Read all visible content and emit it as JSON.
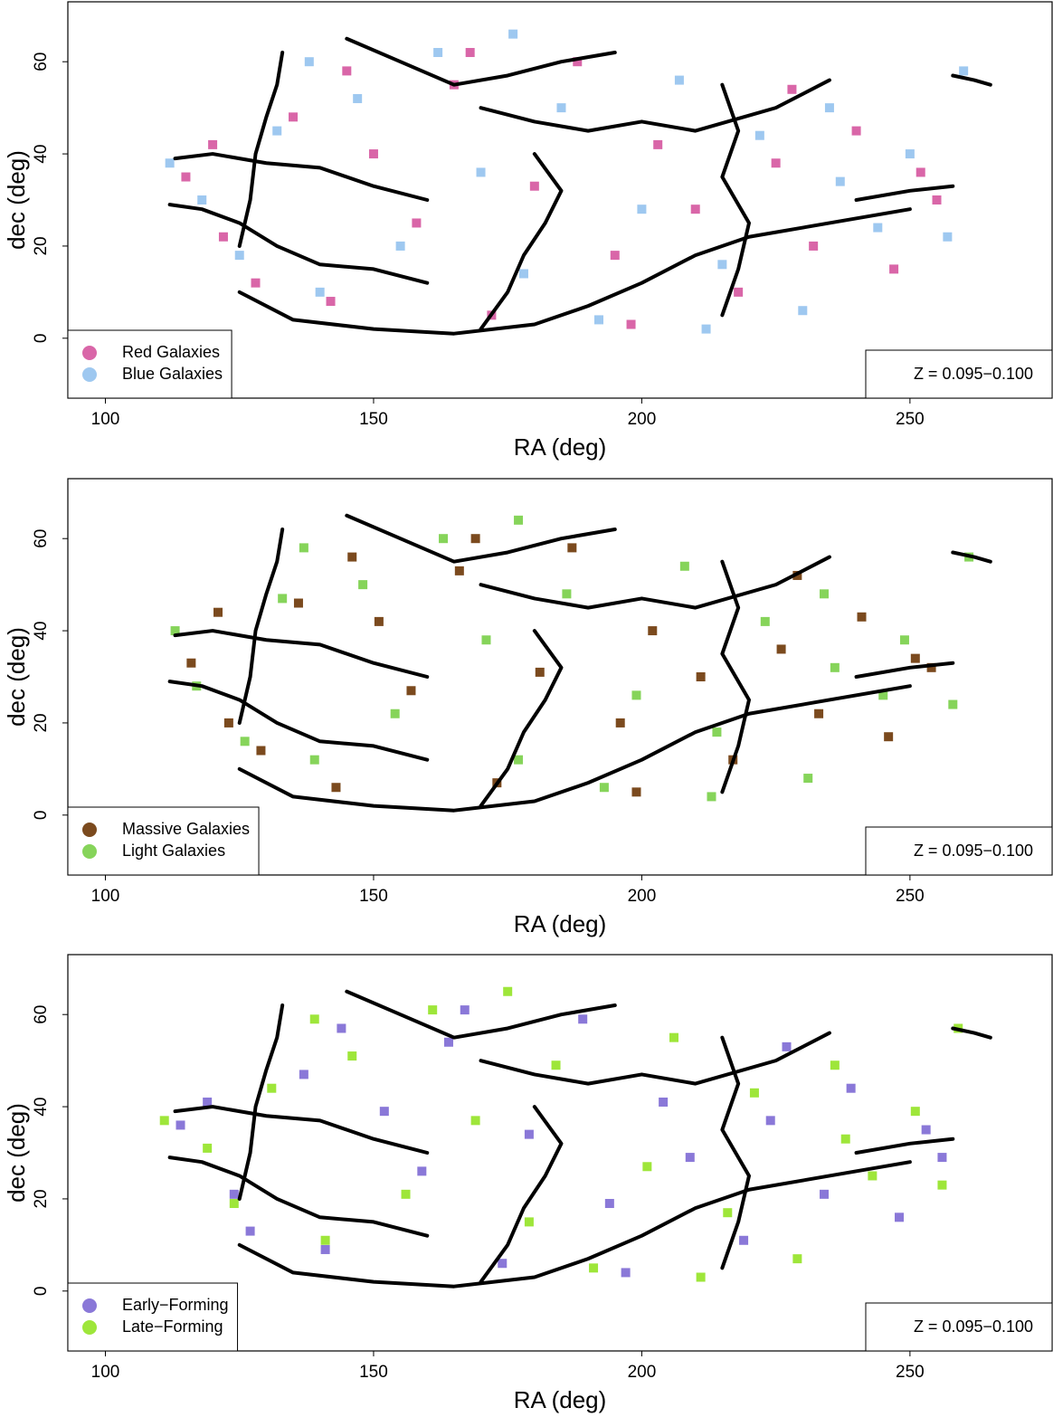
{
  "chart_data": [
    {
      "type": "scatter",
      "xlabel": "RA (deg)",
      "ylabel": "dec (deg)",
      "annotation": "Z = 0.095−0.100",
      "xlim": [
        93,
        276.5
      ],
      "ylim": [
        -13,
        73
      ],
      "xticks": [
        100,
        150,
        200,
        250
      ],
      "yticks": [
        0,
        20,
        40,
        60
      ],
      "series": [
        {
          "name": "Red Galaxies",
          "color": "#d966a8",
          "x": [
            115,
            122,
            128,
            135,
            142,
            150,
            158,
            165,
            172,
            180,
            188,
            195,
            203,
            210,
            218,
            225,
            232,
            240,
            247,
            255,
            120,
            145,
            168,
            198,
            228,
            252
          ],
          "y": [
            35,
            22,
            12,
            48,
            8,
            40,
            25,
            55,
            5,
            33,
            60,
            18,
            42,
            28,
            10,
            38,
            20,
            45,
            15,
            30,
            42,
            58,
            62,
            3,
            54,
            36
          ]
        },
        {
          "name": "Blue Galaxies",
          "color": "#9ec8f0",
          "x": [
            118,
            125,
            132,
            140,
            147,
            155,
            162,
            170,
            178,
            185,
            192,
            200,
            207,
            215,
            222,
            230,
            237,
            244,
            250,
            260,
            112,
            138,
            176,
            212,
            235,
            257
          ],
          "y": [
            30,
            18,
            45,
            10,
            52,
            20,
            62,
            36,
            14,
            50,
            4,
            28,
            56,
            16,
            44,
            6,
            34,
            24,
            40,
            58,
            38,
            60,
            66,
            2,
            50,
            22
          ]
        }
      ],
      "filament_color": "#000000",
      "filaments": [
        {
          "x": [
            113,
            120,
            130,
            140,
            150,
            160
          ],
          "y": [
            39,
            40,
            38,
            37,
            33,
            30
          ]
        },
        {
          "x": [
            112,
            118,
            125,
            132,
            140,
            150,
            160
          ],
          "y": [
            29,
            28,
            25,
            20,
            16,
            15,
            12
          ]
        },
        {
          "x": [
            125,
            135,
            150,
            165,
            180,
            190,
            200,
            210,
            220,
            235,
            250
          ],
          "y": [
            10,
            4,
            2,
            1,
            3,
            7,
            12,
            18,
            22,
            25,
            28
          ]
        },
        {
          "x": [
            145,
            155,
            165,
            175,
            185,
            195
          ],
          "y": [
            65,
            60,
            55,
            57,
            60,
            62
          ]
        },
        {
          "x": [
            170,
            180,
            190,
            200,
            210,
            225,
            235
          ],
          "y": [
            50,
            47,
            45,
            47,
            45,
            50,
            56
          ]
        },
        {
          "x": [
            215,
            218,
            215,
            220,
            218,
            215
          ],
          "y": [
            55,
            45,
            35,
            25,
            15,
            5
          ]
        },
        {
          "x": [
            180,
            185,
            182,
            178,
            175,
            170
          ],
          "y": [
            40,
            32,
            25,
            18,
            10,
            2
          ]
        },
        {
          "x": [
            240,
            250,
            258
          ],
          "y": [
            30,
            32,
            33
          ]
        },
        {
          "x": [
            133,
            132,
            130,
            128,
            127,
            125
          ],
          "y": [
            62,
            55,
            48,
            40,
            30,
            20
          ]
        },
        {
          "x": [
            258,
            262,
            265
          ],
          "y": [
            57,
            56,
            55
          ]
        }
      ]
    },
    {
      "type": "scatter",
      "xlabel": "RA (deg)",
      "ylabel": "dec (deg)",
      "annotation": "Z = 0.095−0.100",
      "xlim": [
        93,
        276.5
      ],
      "ylim": [
        -13,
        73
      ],
      "xticks": [
        100,
        150,
        200,
        250
      ],
      "yticks": [
        0,
        20,
        40,
        60
      ],
      "series": [
        {
          "name": "Massive Galaxies",
          "color": "#7b4a1e",
          "x": [
            116,
            123,
            129,
            136,
            143,
            151,
            157,
            166,
            173,
            181,
            187,
            196,
            202,
            211,
            217,
            226,
            233,
            241,
            246,
            254,
            121,
            146,
            169,
            199,
            229,
            251
          ],
          "y": [
            33,
            20,
            14,
            46,
            6,
            42,
            27,
            53,
            7,
            31,
            58,
            20,
            40,
            30,
            12,
            36,
            22,
            43,
            17,
            32,
            44,
            56,
            60,
            5,
            52,
            34
          ]
        },
        {
          "name": "Light Galaxies",
          "color": "#86d45a",
          "x": [
            117,
            126,
            133,
            139,
            148,
            154,
            163,
            171,
            177,
            186,
            193,
            199,
            208,
            214,
            223,
            231,
            236,
            245,
            249,
            261,
            113,
            137,
            177,
            213,
            234,
            258
          ],
          "y": [
            28,
            16,
            47,
            12,
            50,
            22,
            60,
            38,
            12,
            48,
            6,
            26,
            54,
            18,
            42,
            8,
            32,
            26,
            38,
            56,
            40,
            58,
            64,
            4,
            48,
            24
          ]
        }
      ],
      "filament_color": "#000000",
      "filaments": [
        {
          "x": [
            113,
            120,
            130,
            140,
            150,
            160
          ],
          "y": [
            39,
            40,
            38,
            37,
            33,
            30
          ]
        },
        {
          "x": [
            112,
            118,
            125,
            132,
            140,
            150,
            160
          ],
          "y": [
            29,
            28,
            25,
            20,
            16,
            15,
            12
          ]
        },
        {
          "x": [
            125,
            135,
            150,
            165,
            180,
            190,
            200,
            210,
            220,
            235,
            250
          ],
          "y": [
            10,
            4,
            2,
            1,
            3,
            7,
            12,
            18,
            22,
            25,
            28
          ]
        },
        {
          "x": [
            145,
            155,
            165,
            175,
            185,
            195
          ],
          "y": [
            65,
            60,
            55,
            57,
            60,
            62
          ]
        },
        {
          "x": [
            170,
            180,
            190,
            200,
            210,
            225,
            235
          ],
          "y": [
            50,
            47,
            45,
            47,
            45,
            50,
            56
          ]
        },
        {
          "x": [
            215,
            218,
            215,
            220,
            218,
            215
          ],
          "y": [
            55,
            45,
            35,
            25,
            15,
            5
          ]
        },
        {
          "x": [
            180,
            185,
            182,
            178,
            175,
            170
          ],
          "y": [
            40,
            32,
            25,
            18,
            10,
            2
          ]
        },
        {
          "x": [
            240,
            250,
            258
          ],
          "y": [
            30,
            32,
            33
          ]
        },
        {
          "x": [
            133,
            132,
            130,
            128,
            127,
            125
          ],
          "y": [
            62,
            55,
            48,
            40,
            30,
            20
          ]
        },
        {
          "x": [
            258,
            262,
            265
          ],
          "y": [
            57,
            56,
            55
          ]
        }
      ]
    },
    {
      "type": "scatter",
      "xlabel": "RA (deg)",
      "ylabel": "dec (deg)",
      "annotation": "Z = 0.095−0.100",
      "xlim": [
        93,
        276.5
      ],
      "ylim": [
        -13,
        73
      ],
      "xticks": [
        100,
        150,
        200,
        250
      ],
      "yticks": [
        0,
        20,
        40,
        60
      ],
      "series": [
        {
          "name": "Early−Forming",
          "color": "#8a78d8",
          "x": [
            114,
            124,
            127,
            137,
            141,
            152,
            159,
            164,
            174,
            179,
            189,
            194,
            204,
            209,
            219,
            224,
            234,
            239,
            248,
            256,
            119,
            144,
            167,
            197,
            227,
            253
          ],
          "y": [
            36,
            21,
            13,
            47,
            9,
            39,
            26,
            54,
            6,
            34,
            59,
            19,
            41,
            29,
            11,
            37,
            21,
            44,
            16,
            29,
            41,
            57,
            61,
            4,
            53,
            35
          ]
        },
        {
          "name": "Late−Forming",
          "color": "#9ee63a",
          "x": [
            119,
            124,
            131,
            141,
            146,
            156,
            161,
            169,
            179,
            184,
            191,
            201,
            206,
            216,
            221,
            229,
            238,
            243,
            251,
            259,
            111,
            139,
            175,
            211,
            236,
            256
          ],
          "y": [
            31,
            19,
            44,
            11,
            51,
            21,
            61,
            37,
            15,
            49,
            5,
            27,
            55,
            17,
            43,
            7,
            33,
            25,
            39,
            57,
            37,
            59,
            65,
            3,
            49,
            23
          ]
        }
      ],
      "filament_color": "#000000",
      "filaments": [
        {
          "x": [
            113,
            120,
            130,
            140,
            150,
            160
          ],
          "y": [
            39,
            40,
            38,
            37,
            33,
            30
          ]
        },
        {
          "x": [
            112,
            118,
            125,
            132,
            140,
            150,
            160
          ],
          "y": [
            29,
            28,
            25,
            20,
            16,
            15,
            12
          ]
        },
        {
          "x": [
            125,
            135,
            150,
            165,
            180,
            190,
            200,
            210,
            220,
            235,
            250
          ],
          "y": [
            10,
            4,
            2,
            1,
            3,
            7,
            12,
            18,
            22,
            25,
            28
          ]
        },
        {
          "x": [
            145,
            155,
            165,
            175,
            185,
            195
          ],
          "y": [
            65,
            60,
            55,
            57,
            60,
            62
          ]
        },
        {
          "x": [
            170,
            180,
            190,
            200,
            210,
            225,
            235
          ],
          "y": [
            50,
            47,
            45,
            47,
            45,
            50,
            56
          ]
        },
        {
          "x": [
            215,
            218,
            215,
            220,
            218,
            215
          ],
          "y": [
            55,
            45,
            35,
            25,
            15,
            5
          ]
        },
        {
          "x": [
            180,
            185,
            182,
            178,
            175,
            170
          ],
          "y": [
            40,
            32,
            25,
            18,
            10,
            2
          ]
        },
        {
          "x": [
            240,
            250,
            258
          ],
          "y": [
            30,
            32,
            33
          ]
        },
        {
          "x": [
            133,
            132,
            130,
            128,
            127,
            125
          ],
          "y": [
            62,
            55,
            48,
            40,
            30,
            20
          ]
        },
        {
          "x": [
            258,
            262,
            265
          ],
          "y": [
            57,
            56,
            55
          ]
        }
      ]
    }
  ]
}
